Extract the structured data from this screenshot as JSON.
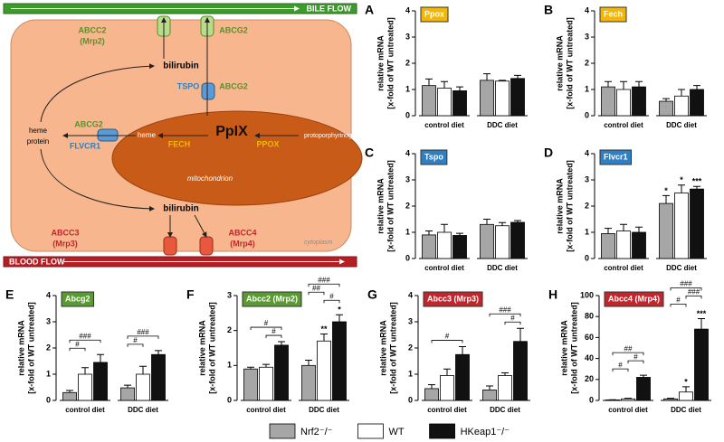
{
  "diagram": {
    "bile_flow": "BILE FLOW",
    "blood_flow": "BLOOD FLOW",
    "abcc2": "ABCC2",
    "mrp2": "(Mrp2)",
    "abcg2_top": "ABCG2",
    "bilirubin_top": "bilirubin",
    "tspo": "TSPO",
    "abcg2_mito": "ABCG2",
    "ppix": "PpIX",
    "heme_protein_1": "heme",
    "heme_protein_2": "protein",
    "abcg2_left": "ABCG2",
    "flvcr1": "FLVCR1",
    "heme": "heme",
    "fech": "FECH",
    "ppox": "PPOX",
    "protoporphyrinogen": "protoporphyrinogen IX",
    "mitochondrion": "mitochondrion",
    "bilirubin_bottom": "bilirubin",
    "abcc3": "ABCC3",
    "mrp3": "(Mrp3)",
    "abcc4": "ABCC4",
    "mrp4": "(Mrp4)",
    "cytoplasm": "cytoplasm"
  },
  "legend": {
    "items": [
      {
        "name": "Nrf2⁻/⁻",
        "color": "#a6a6a6"
      },
      {
        "name": "WT",
        "color": "#ffffff"
      },
      {
        "name": "HKeap1⁻/⁻",
        "color": "#111111"
      }
    ]
  },
  "chart_data": [
    {
      "type": "bar",
      "panel": "A",
      "title": "Ppox",
      "title_color": "#f2b705",
      "ylabel": [
        "relative mRNA",
        "[x-fold of WT untreated]"
      ],
      "categories": [
        "control diet",
        "DDC diet"
      ],
      "ylim": [
        0,
        4
      ],
      "yticks": [
        0,
        1,
        2,
        3,
        4
      ],
      "series": [
        {
          "values": [
            1.15,
            1.35
          ],
          "errors": [
            0.25,
            0.25
          ]
        },
        {
          "values": [
            1.05,
            1.32
          ],
          "errors": [
            0.25,
            0.03
          ]
        },
        {
          "values": [
            0.95,
            1.42
          ],
          "errors": [
            0.15,
            0.12
          ]
        }
      ]
    },
    {
      "type": "bar",
      "panel": "B",
      "title": "Fech",
      "title_color": "#f2b705",
      "ylabel": [
        "relative mRNA",
        "[x-fold of WT untreated]"
      ],
      "categories": [
        "control diet",
        "DDC diet"
      ],
      "ylim": [
        0,
        4
      ],
      "yticks": [
        0,
        1,
        2,
        3,
        4
      ],
      "series": [
        {
          "values": [
            1.1,
            0.55
          ],
          "errors": [
            0.2,
            0.1
          ]
        },
        {
          "values": [
            1.0,
            0.75
          ],
          "errors": [
            0.3,
            0.25
          ]
        },
        {
          "values": [
            1.1,
            1.0
          ],
          "errors": [
            0.2,
            0.15
          ]
        }
      ]
    },
    {
      "type": "bar",
      "panel": "C",
      "title": "Tspo",
      "title_color": "#2f7fc1",
      "ylabel": [
        "relative mRNA",
        "[x-fold of WT untreated]"
      ],
      "categories": [
        "control diet",
        "DDC diet"
      ],
      "ylim": [
        0,
        4
      ],
      "yticks": [
        0,
        1,
        2,
        3,
        4
      ],
      "series": [
        {
          "values": [
            0.9,
            1.3
          ],
          "errors": [
            0.15,
            0.2
          ]
        },
        {
          "values": [
            1.0,
            1.25
          ],
          "errors": [
            0.3,
            0.12
          ]
        },
        {
          "values": [
            0.88,
            1.38
          ],
          "errors": [
            0.08,
            0.07
          ]
        }
      ]
    },
    {
      "type": "bar",
      "panel": "D",
      "title": "Flvcr1",
      "title_color": "#2f7fc1",
      "ylabel": [
        "relative mRNA",
        "[x-fold of WT untreated]"
      ],
      "categories": [
        "control diet",
        "DDC diet"
      ],
      "ylim": [
        0,
        4
      ],
      "yticks": [
        0,
        1,
        2,
        3,
        4
      ],
      "series": [
        {
          "values": [
            0.95,
            2.1
          ],
          "errors": [
            0.2,
            0.3
          ],
          "marks": [
            null,
            "*"
          ]
        },
        {
          "values": [
            1.05,
            2.5
          ],
          "errors": [
            0.25,
            0.3
          ],
          "marks": [
            null,
            "*"
          ]
        },
        {
          "values": [
            1.0,
            2.65
          ],
          "errors": [
            0.2,
            0.1
          ],
          "marks": [
            null,
            "***"
          ]
        }
      ]
    },
    {
      "type": "bar",
      "panel": "E",
      "title": "Abcg2",
      "title_color": "#5a9a32",
      "ylabel": [
        "relative mRNA",
        "[x-fold of WT untreated]"
      ],
      "categories": [
        "control diet",
        "DDC diet"
      ],
      "ylim": [
        0,
        4
      ],
      "yticks": [
        0,
        1,
        2,
        3,
        4
      ],
      "series": [
        {
          "values": [
            0.3,
            0.48
          ],
          "errors": [
            0.08,
            0.1
          ]
        },
        {
          "values": [
            1.0,
            1.0
          ],
          "errors": [
            0.25,
            0.3
          ]
        },
        {
          "values": [
            1.45,
            1.75
          ],
          "errors": [
            0.3,
            0.15
          ]
        }
      ],
      "annotations": [
        {
          "text": "#",
          "category": 0,
          "between": [
            0,
            1
          ]
        },
        {
          "text": "###",
          "category": 0,
          "between": [
            0,
            2
          ]
        },
        {
          "text": "#",
          "category": 1,
          "between": [
            0,
            1
          ]
        },
        {
          "text": "###",
          "category": 1,
          "between": [
            0,
            2
          ]
        }
      ]
    },
    {
      "type": "bar",
      "panel": "F",
      "title": "Abcc2 (Mrp2)",
      "title_color": "#5a9a32",
      "ylabel": [
        "relative mRNA",
        "[x-fold of WT untreated]"
      ],
      "categories": [
        "control diet",
        "DDC diet"
      ],
      "ylim": [
        0,
        3
      ],
      "yticks": [
        0,
        1,
        2,
        3
      ],
      "series": [
        {
          "values": [
            0.9,
            1.0
          ],
          "errors": [
            0.05,
            0.15
          ]
        },
        {
          "values": [
            0.95,
            1.7
          ],
          "errors": [
            0.08,
            0.2
          ],
          "marks": [
            null,
            "**"
          ]
        },
        {
          "values": [
            1.58,
            2.25
          ],
          "errors": [
            0.1,
            0.2
          ],
          "marks": [
            null,
            "*"
          ]
        }
      ],
      "annotations": [
        {
          "text": "#",
          "category": 0,
          "between": [
            1,
            2
          ]
        },
        {
          "text": "#",
          "category": 0,
          "between": [
            0,
            2
          ]
        },
        {
          "text": "#",
          "category": 1,
          "between": [
            1,
            2
          ]
        },
        {
          "text": "##",
          "category": 1,
          "between": [
            0,
            1
          ]
        },
        {
          "text": "###",
          "category": 1,
          "between": [
            0,
            2
          ]
        }
      ]
    },
    {
      "type": "bar",
      "panel": "G",
      "title": "Abcc3 (Mrp3)",
      "title_color": "#c0272d",
      "ylabel": [
        "relative mRNA",
        "[x-fold of WT untreated]"
      ],
      "categories": [
        "control diet",
        "DDC diet"
      ],
      "ylim": [
        0,
        4
      ],
      "yticks": [
        0,
        1,
        2,
        3,
        4
      ],
      "series": [
        {
          "values": [
            0.45,
            0.4
          ],
          "errors": [
            0.15,
            0.15
          ]
        },
        {
          "values": [
            0.95,
            0.95
          ],
          "errors": [
            0.25,
            0.1
          ]
        },
        {
          "values": [
            1.75,
            2.25
          ],
          "errors": [
            0.3,
            0.5
          ]
        }
      ],
      "annotations": [
        {
          "text": "#",
          "category": 0,
          "between": [
            0,
            2
          ]
        },
        {
          "text": "#",
          "category": 1,
          "between": [
            1,
            2
          ]
        },
        {
          "text": "###",
          "category": 1,
          "between": [
            0,
            2
          ]
        }
      ]
    },
    {
      "type": "bar",
      "panel": "H",
      "title": "Abcc4 (Mrp4)",
      "title_color": "#c0272d",
      "ylabel": [
        "relative mRNA",
        "[x-fold of WT untreated]"
      ],
      "categories": [
        "control diet",
        "DDC diet"
      ],
      "ylim": [
        0,
        100
      ],
      "yticks": [
        0,
        20,
        40,
        60,
        80,
        100
      ],
      "series": [
        {
          "values": [
            0.5,
            1.5
          ],
          "errors": [
            0.2,
            0.5
          ]
        },
        {
          "values": [
            1.5,
            8
          ],
          "errors": [
            0.5,
            5
          ],
          "marks": [
            null,
            "*"
          ]
        },
        {
          "values": [
            22,
            68
          ],
          "errors": [
            2,
            10
          ],
          "marks": [
            null,
            "***"
          ]
        }
      ],
      "annotations": [
        {
          "text": "#",
          "category": 0,
          "between": [
            0,
            1
          ]
        },
        {
          "text": "#",
          "category": 0,
          "between": [
            1,
            2
          ]
        },
        {
          "text": "##",
          "category": 0,
          "between": [
            0,
            2
          ]
        },
        {
          "text": "#",
          "category": 1,
          "between": [
            0,
            1
          ]
        },
        {
          "text": "###",
          "category": 1,
          "between": [
            1,
            2
          ]
        },
        {
          "text": "###",
          "category": 1,
          "between": [
            0,
            2
          ]
        }
      ]
    }
  ]
}
